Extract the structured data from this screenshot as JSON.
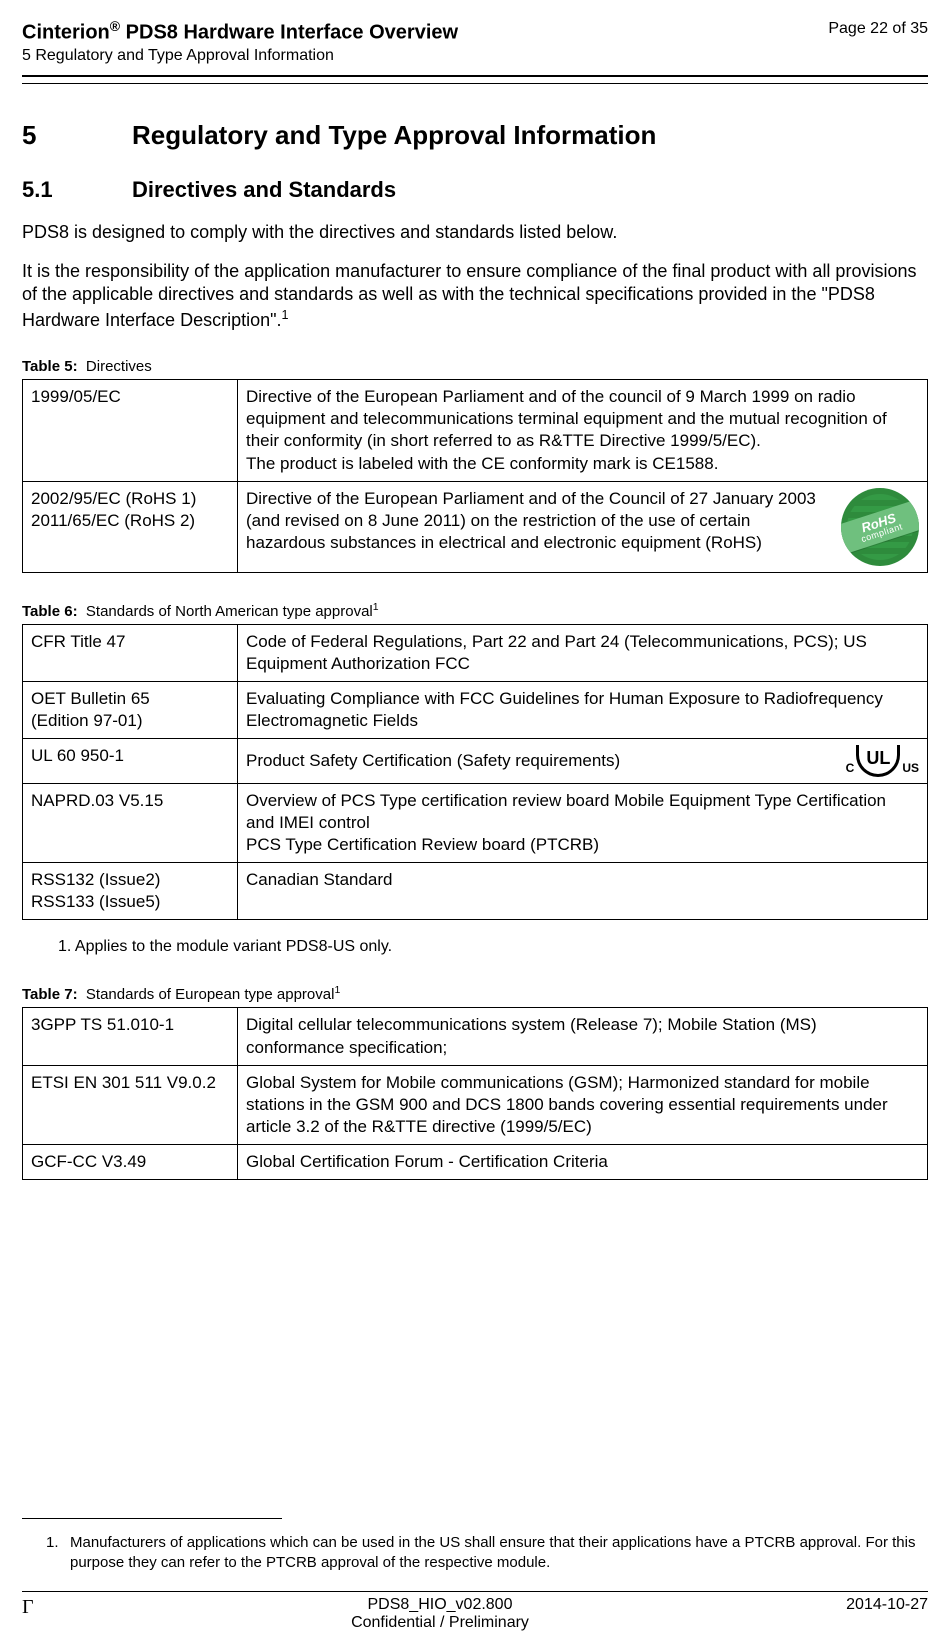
{
  "header": {
    "product": "Cinterion",
    "regmark": "®",
    "title_rest": " PDS8 Hardware Interface Overview",
    "subtitle": "5 Regulatory and Type Approval Information",
    "page_indicator": "Page 22 of 35"
  },
  "section": {
    "number": "5",
    "title": "Regulatory and Type Approval Information"
  },
  "subsection": {
    "number": "5.1",
    "title": "Directives and Standards"
  },
  "intro_para": "PDS8 is designed to comply with the directives and standards listed below.",
  "responsibility_para": "It is the responsibility of the application manufacturer to ensure compliance of the final product with all provisions of the applicable directives and standards as well as with the technical specifications provided in the \"PDS8 Hardware Interface Description\".",
  "responsibility_super": "1",
  "table5": {
    "caption_label": "Table 5:",
    "caption_text": "Directives",
    "rows": [
      {
        "c1": "1999/05/EC",
        "c2": "Directive of the European Parliament and of the council of 9 March 1999 on radio equipment and telecommunications terminal equipment and the mutual recognition of their conformity (in short referred to as R&TTE Directive 1999/5/EC).\nThe product is labeled with the CE conformity mark is CE1588."
      },
      {
        "c1": "2002/95/EC (RoHS 1)\n2011/65/EC (RoHS 2)",
        "c2": "Directive of the European Parliament and of the Council of 27 January 2003 (and revised on 8 June 2011) on the restriction of the use of certain hazardous substances in electrical and electronic equipment (RoHS)",
        "badge": {
          "line1": "RoHS",
          "line2": "compliant"
        }
      }
    ]
  },
  "table6": {
    "caption_label": "Table 6:",
    "caption_text": "Standards of North American type approval",
    "caption_super": "1",
    "rows": [
      {
        "c1": "CFR Title 47",
        "c2": "Code of Federal Regulations, Part 22 and Part 24 (Telecommunications, PCS); US Equipment Authorization FCC"
      },
      {
        "c1": "OET Bulletin 65\n(Edition 97-01)",
        "c2": "Evaluating Compliance with FCC Guidelines for Human Exposure to Radiofrequency Electromagnetic Fields"
      },
      {
        "c1": "UL 60 950-1",
        "c2": "Product Safety Certification (Safety requirements)",
        "ul_mark": {
          "left": "C",
          "mid": "UL",
          "right": "US"
        }
      },
      {
        "c1": "NAPRD.03 V5.15",
        "c2": "Overview of PCS Type certification review board Mobile Equipment Type Certification and IMEI control\nPCS Type Certification Review board (PTCRB)"
      },
      {
        "c1": "RSS132 (Issue2)\nRSS133 (Issue5)",
        "c2": "Canadian Standard"
      }
    ],
    "footnote": "1. Applies to the module variant PDS8-US only."
  },
  "table7": {
    "caption_label": "Table 7:",
    "caption_text": "Standards of European type approval",
    "caption_super": "1",
    "rows": [
      {
        "c1": "3GPP TS 51.010-1",
        "c2": "Digital cellular telecommunications system (Release 7); Mobile Station (MS) conformance specification;"
      },
      {
        "c1": "ETSI EN 301 511 V9.0.2",
        "c2": "Global System for Mobile communications (GSM); Harmonized standard for mobile stations in the GSM 900 and DCS 1800 bands covering essential requirements under article 3.2 of the R&TTE directive (1999/5/EC)"
      },
      {
        "c1": "GCF-CC V3.49",
        "c2": "Global Certification Forum - Certification Criteria"
      }
    ]
  },
  "bottom_footnote": {
    "marker": "1.",
    "text": "Manufacturers of applications which can be used in the US shall ensure that their applications have a PTCRB approval. For this purpose they can refer to the PTCRB approval of the respective module."
  },
  "footer": {
    "left_symbol": "Γ",
    "doc_id": "PDS8_HIO_v02.800",
    "classification": "Confidential / Preliminary",
    "date": "2014-10-27"
  }
}
